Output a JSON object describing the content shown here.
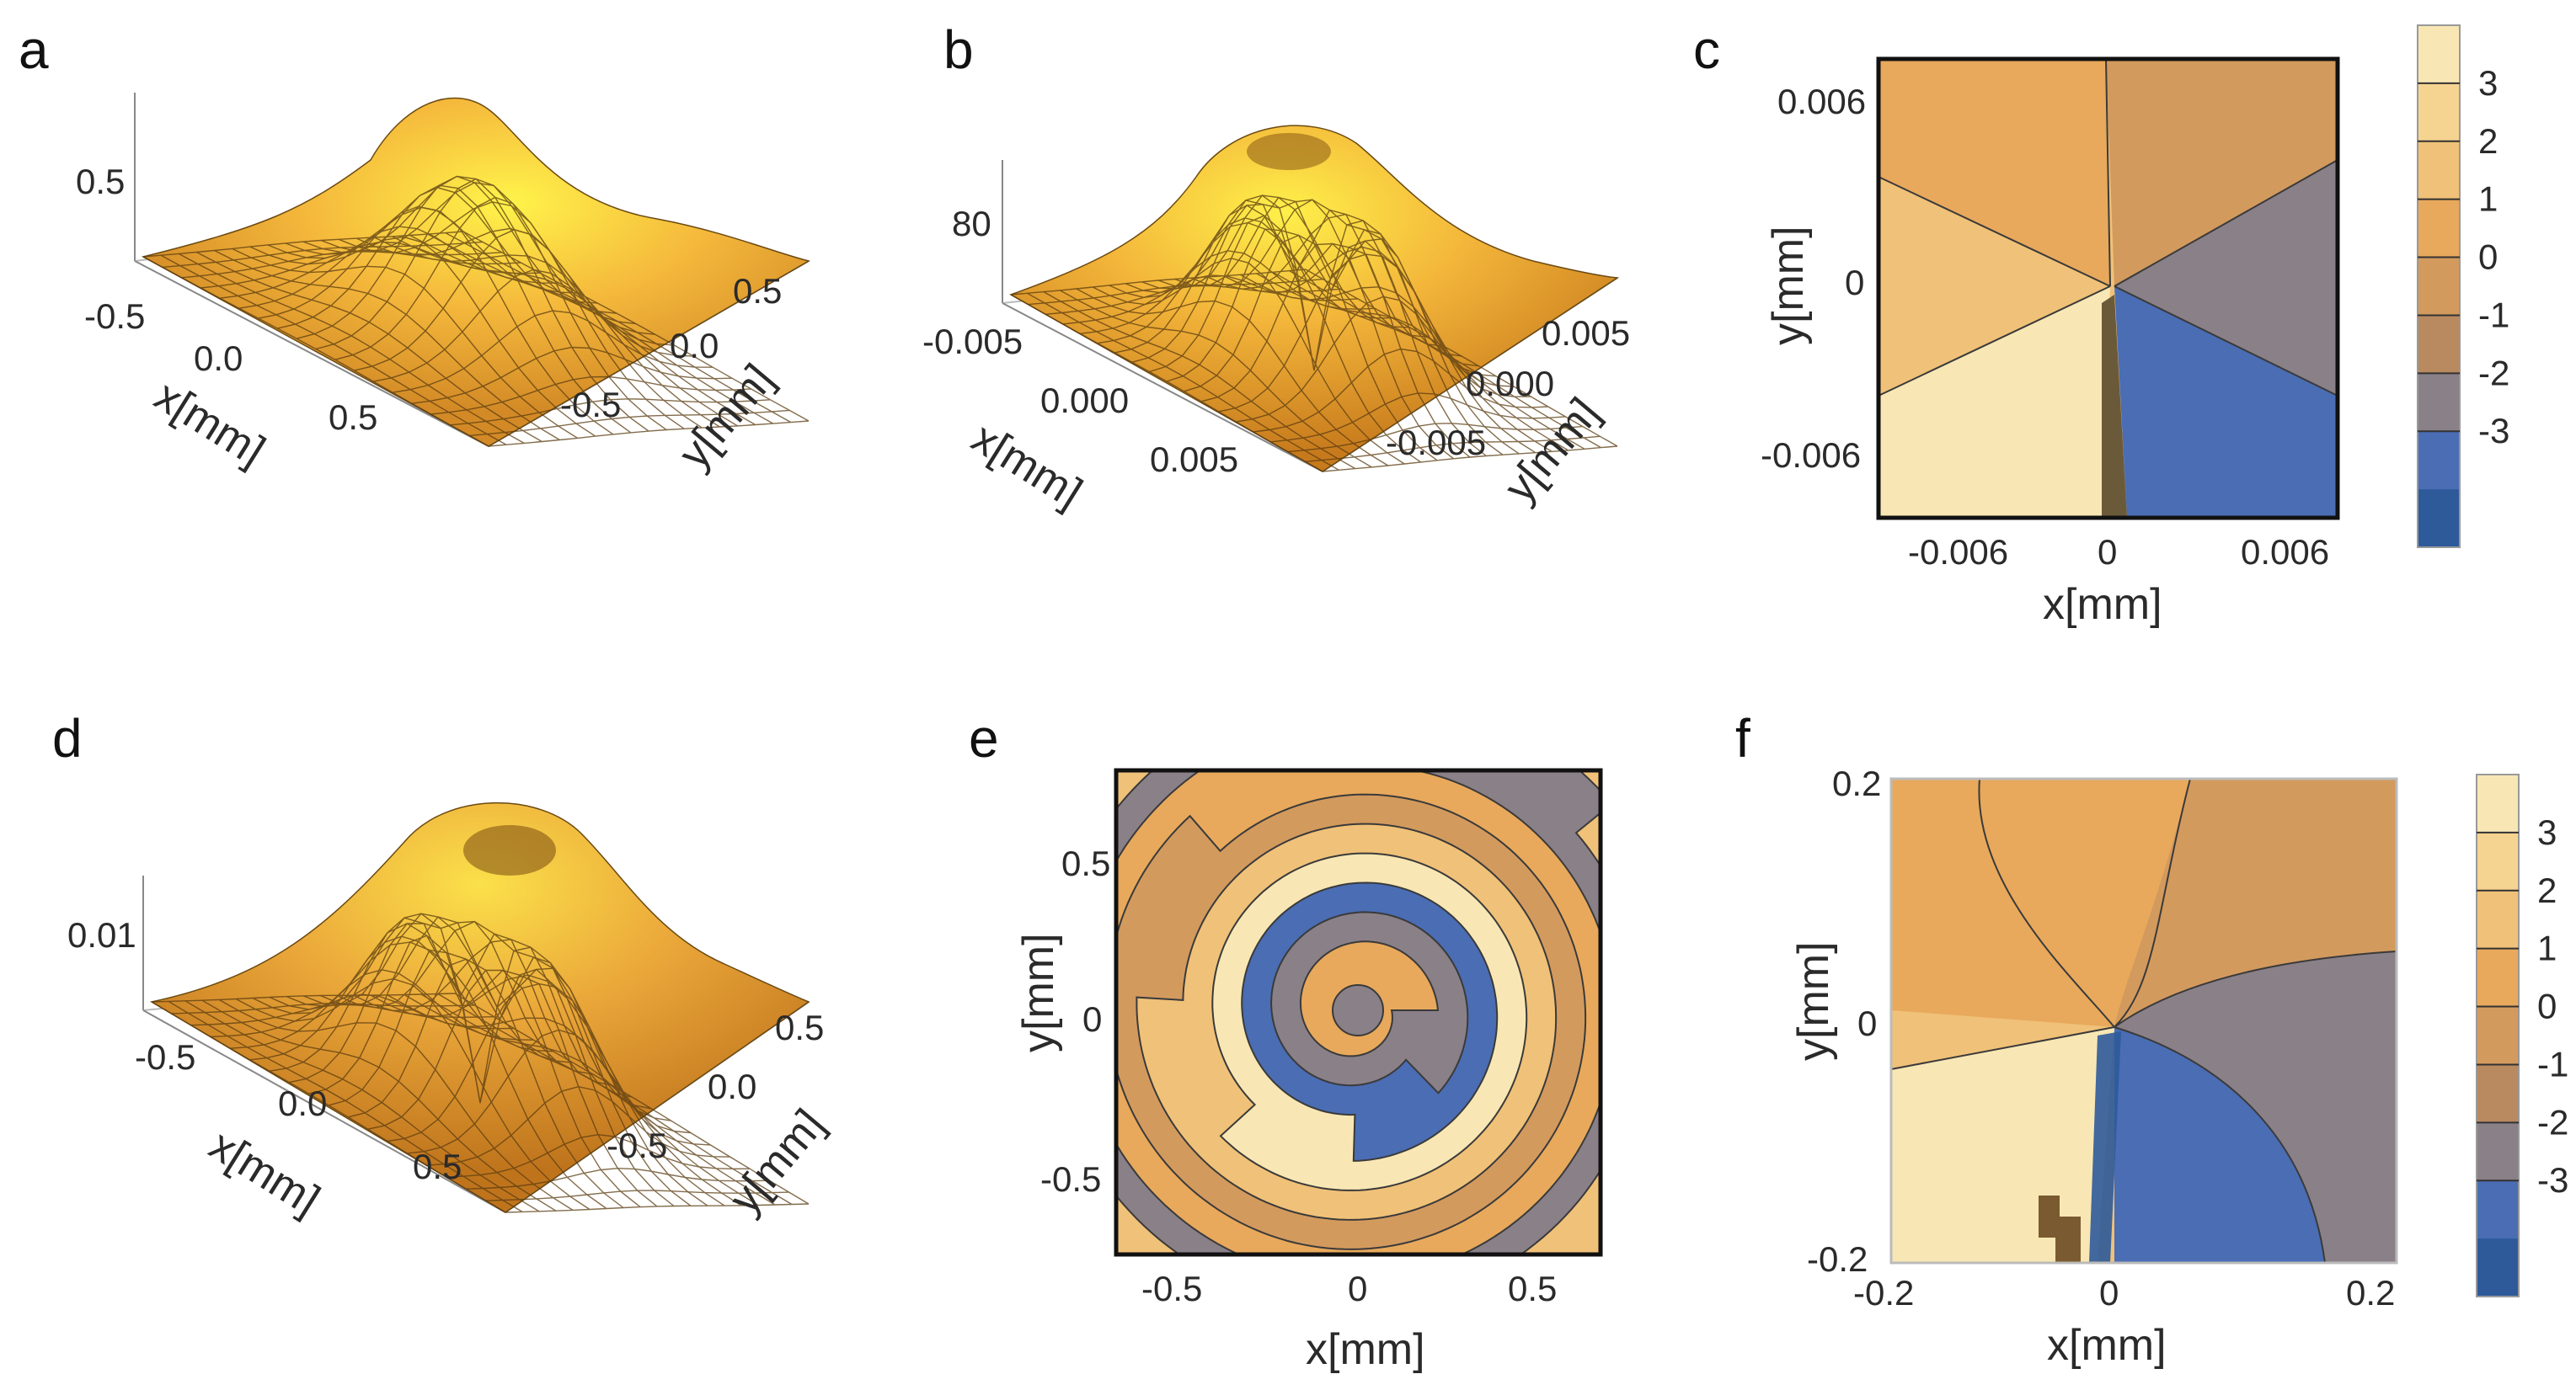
{
  "figure": {
    "panels": [
      "a",
      "b",
      "c",
      "d",
      "e",
      "f"
    ]
  },
  "chart_data": [
    {
      "id": "a",
      "type": "surface3d",
      "description_label": "a",
      "xlabel": "x[mm]",
      "ylabel": "y[mm]",
      "x_ticks": [
        "-0.5",
        "0.0",
        "0.5"
      ],
      "y_ticks": [
        "0.5",
        "0.0",
        "-0.5"
      ],
      "z_ticks": [
        "0.5"
      ],
      "shape": "gaussian"
    },
    {
      "id": "b",
      "type": "surface3d",
      "description_label": "b",
      "xlabel": "x[mm]",
      "ylabel": "y[mm]",
      "x_ticks": [
        "-0.005",
        "0.000",
        "0.005"
      ],
      "y_ticks": [
        "0.005",
        "0.000",
        "-0.005"
      ],
      "z_ticks": [
        "80"
      ],
      "shape": "donut"
    },
    {
      "id": "c",
      "type": "contour",
      "description_label": "c",
      "xlabel": "x[mm]",
      "ylabel": "y[mm]",
      "x_ticks": [
        "-0.006",
        "0",
        "0.006"
      ],
      "y_ticks": [
        "0.006",
        "0",
        "-0.006"
      ],
      "x_range": [
        -0.0075,
        0.0075
      ],
      "y_range": [
        -0.0075,
        0.0075
      ],
      "colorbar_ticks": [
        "3",
        "2",
        "1",
        "0",
        "-1",
        "-2",
        "-3"
      ],
      "colorbar_colors": [
        "#f8e7b4",
        "#f5d391",
        "#f0c178",
        "#e8a95c",
        "#d39a5e",
        "#b98960",
        "#8a8088",
        "#4a6db4",
        "#2e5a9a"
      ]
    },
    {
      "id": "d",
      "type": "surface3d",
      "description_label": "d",
      "xlabel": "x[mm]",
      "ylabel": "y[mm]",
      "x_ticks": [
        "-0.5",
        "0.0",
        "0.5"
      ],
      "y_ticks": [
        "0.5",
        "0.0",
        "-0.5"
      ],
      "z_ticks": [
        "0.01"
      ],
      "shape": "donut-offset"
    },
    {
      "id": "e",
      "type": "contour",
      "description_label": "e",
      "xlabel": "x[mm]",
      "ylabel": "y[mm]",
      "x_ticks": [
        "-0.5",
        "0",
        "0.5"
      ],
      "y_ticks": [
        "0.5",
        "0",
        "-0.5"
      ],
      "x_range": [
        -0.7,
        0.7
      ],
      "y_range": [
        -0.7,
        0.7
      ]
    },
    {
      "id": "f",
      "type": "contour",
      "description_label": "f",
      "xlabel": "x[mm]",
      "ylabel": "y[mm]",
      "x_ticks": [
        "-0.2",
        "0",
        "0.2"
      ],
      "y_ticks": [
        "0.2",
        "0",
        "-0.2"
      ],
      "x_range": [
        -0.2,
        0.2
      ],
      "y_range": [
        -0.2,
        0.2
      ],
      "colorbar_ticks": [
        "3",
        "2",
        "1",
        "0",
        "-1",
        "-2",
        "-3"
      ],
      "colorbar_colors": [
        "#f8e7b4",
        "#f5d391",
        "#f0c178",
        "#e8a95c",
        "#d39a5e",
        "#b98960",
        "#8a8088",
        "#4a6db4",
        "#2e5a9a"
      ]
    }
  ]
}
